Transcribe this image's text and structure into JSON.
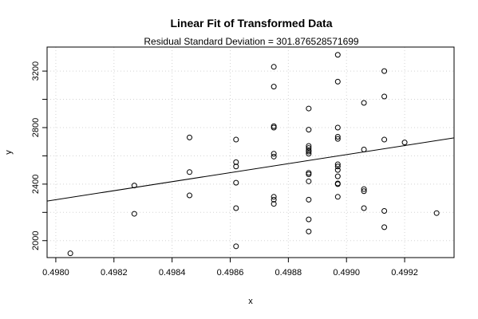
{
  "chart_data": {
    "type": "scatter",
    "title": "Linear Fit of Transformed Data",
    "subtitle": "Residual Standard Deviation =  301.876528571699",
    "xlabel": "x",
    "ylabel": "y",
    "xlim": [
      0.49797,
      0.49937
    ],
    "ylim": [
      1880,
      3370
    ],
    "x_ticks": [
      "0.4980",
      "0.4982",
      "0.4984",
      "0.4986",
      "0.4988",
      "0.4990",
      "0.4992"
    ],
    "y_ticks": [
      "2000",
      "2400",
      "2800",
      "3200"
    ],
    "grid": true,
    "fit_line": {
      "x": [
        0.49797,
        0.49937
      ],
      "y": [
        2280,
        2727
      ]
    },
    "points": [
      [
        0.49805,
        1910
      ],
      [
        0.49827,
        2390
      ],
      [
        0.49827,
        2190
      ],
      [
        0.49846,
        2730
      ],
      [
        0.49846,
        2485
      ],
      [
        0.49846,
        2320
      ],
      [
        0.49862,
        2715
      ],
      [
        0.49862,
        2555
      ],
      [
        0.49862,
        2525
      ],
      [
        0.49862,
        2410
      ],
      [
        0.49862,
        2230
      ],
      [
        0.49862,
        1960
      ],
      [
        0.49875,
        3230
      ],
      [
        0.49875,
        3090
      ],
      [
        0.49875,
        2810
      ],
      [
        0.49875,
        2800
      ],
      [
        0.49875,
        2615
      ],
      [
        0.49875,
        2595
      ],
      [
        0.49875,
        2310
      ],
      [
        0.49875,
        2290
      ],
      [
        0.49875,
        2260
      ],
      [
        0.49887,
        2935
      ],
      [
        0.49887,
        2785
      ],
      [
        0.49887,
        2670
      ],
      [
        0.49887,
        2655
      ],
      [
        0.49887,
        2640
      ],
      [
        0.49887,
        2630
      ],
      [
        0.49887,
        2615
      ],
      [
        0.49887,
        2480
      ],
      [
        0.49887,
        2470
      ],
      [
        0.49887,
        2420
      ],
      [
        0.49887,
        2290
      ],
      [
        0.49887,
        2150
      ],
      [
        0.49887,
        2065
      ],
      [
        0.49897,
        3315
      ],
      [
        0.49897,
        3125
      ],
      [
        0.49897,
        2800
      ],
      [
        0.49897,
        2735
      ],
      [
        0.49897,
        2720
      ],
      [
        0.49897,
        2540
      ],
      [
        0.49897,
        2525
      ],
      [
        0.49897,
        2500
      ],
      [
        0.49897,
        2455
      ],
      [
        0.49897,
        2405
      ],
      [
        0.49897,
        2400
      ],
      [
        0.49897,
        2310
      ],
      [
        0.49906,
        2975
      ],
      [
        0.49906,
        2645
      ],
      [
        0.49906,
        2365
      ],
      [
        0.49906,
        2350
      ],
      [
        0.49906,
        2230
      ],
      [
        0.49913,
        3200
      ],
      [
        0.49913,
        3020
      ],
      [
        0.49913,
        2715
      ],
      [
        0.49913,
        2210
      ],
      [
        0.49913,
        2095
      ],
      [
        0.4992,
        2695
      ],
      [
        0.49931,
        2195
      ]
    ]
  }
}
